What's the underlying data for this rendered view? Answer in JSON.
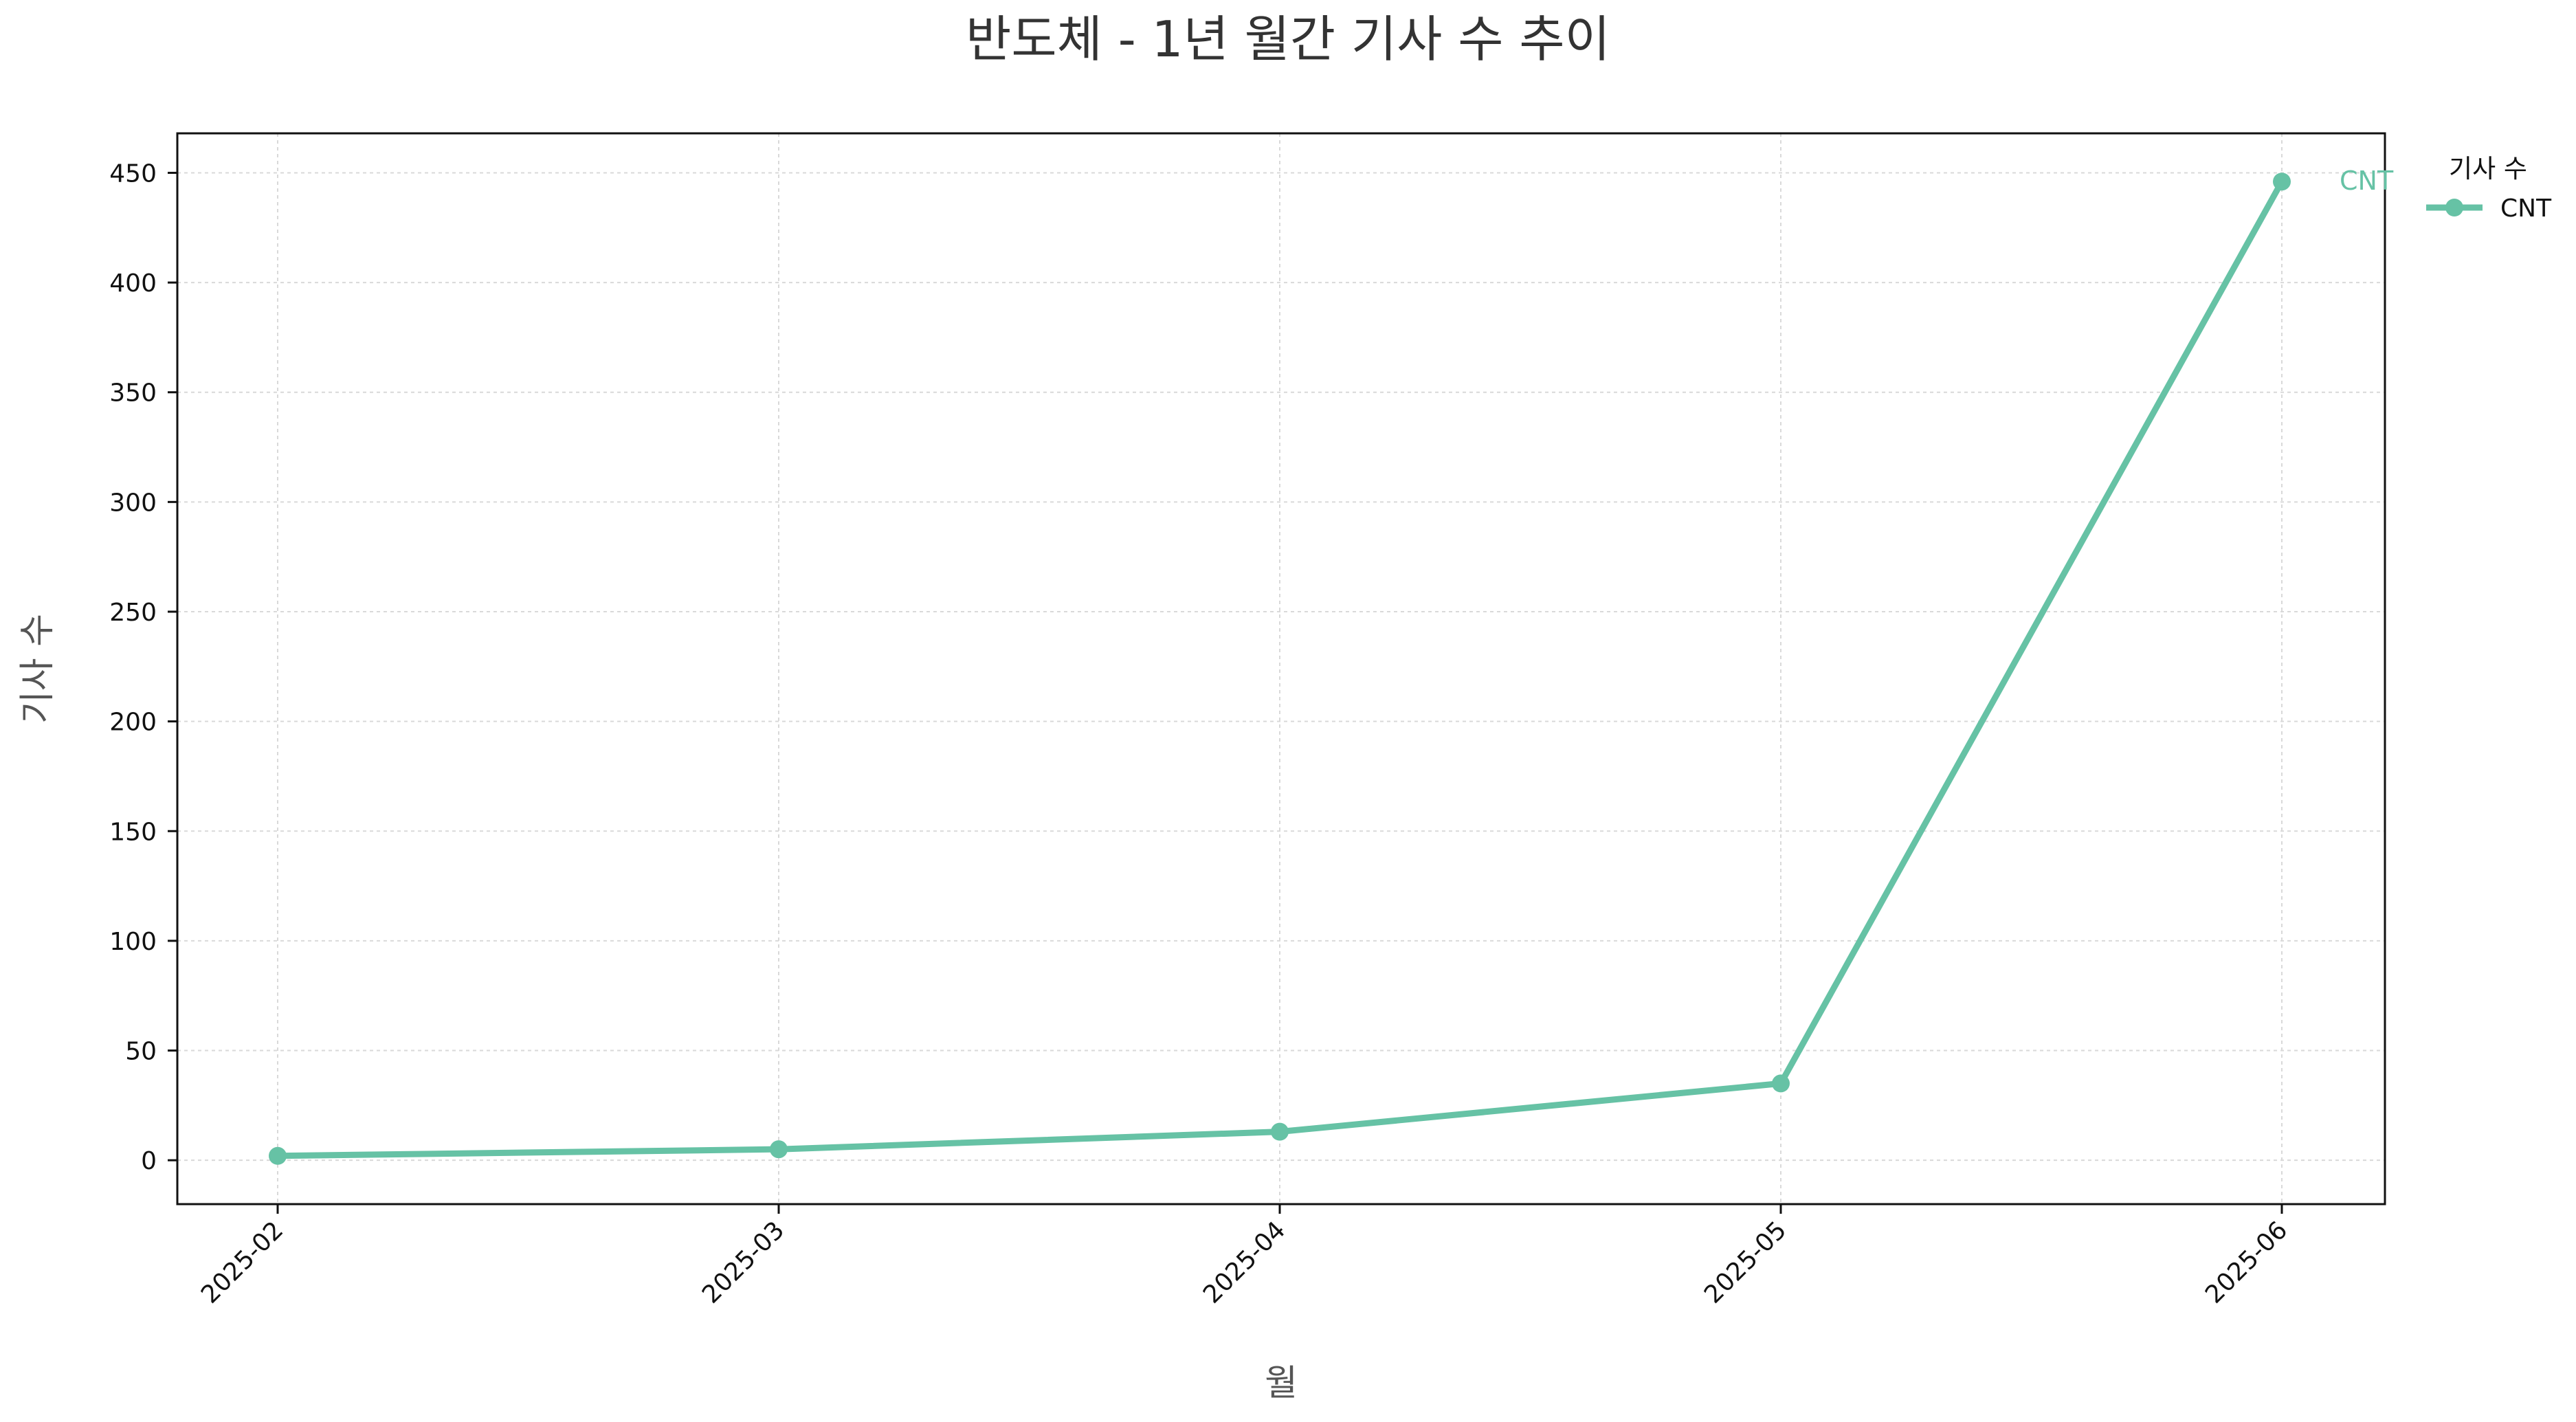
{
  "chart_data": {
    "type": "line",
    "title": "반도체 - 1년 월간 기사 수 추이",
    "xlabel": "월",
    "ylabel": "기사 수",
    "x": [
      "2025-02",
      "2025-03",
      "2025-04",
      "2025-05",
      "2025-06"
    ],
    "ylim": [
      -20,
      468
    ],
    "yticks": [
      0,
      50,
      100,
      150,
      200,
      250,
      300,
      350,
      400,
      450
    ],
    "grid": true,
    "legend": {
      "title": "기사 수",
      "placement": "outside-top-right"
    },
    "series": [
      {
        "name": "CNT",
        "color": "#66c2a5",
        "values": [
          2,
          5,
          13,
          35,
          446
        ]
      }
    ],
    "annotations": [
      {
        "text": "CNT",
        "series": "CNT",
        "at": "last-point"
      }
    ]
  }
}
